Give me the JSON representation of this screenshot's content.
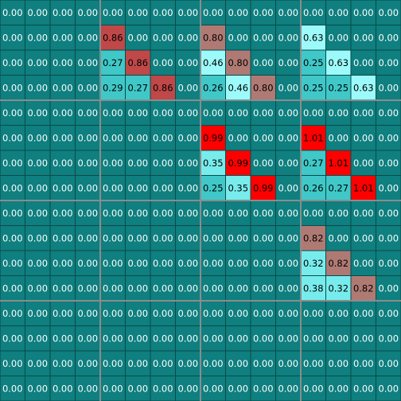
{
  "chart_data": {
    "type": "heatmap",
    "rows": 16,
    "cols": 16,
    "block_size": 4,
    "grid": true,
    "colors": {
      "background": "#0f7f7f",
      "cell_zero": "#0f7f7f",
      "cell_border": "#0a4a4a",
      "block_separator": "#8c8c8c",
      "low_cyan": "#40c8c8",
      "mid_cyan": "#78ecec",
      "high_cyan": "#9cfafa",
      "mid_red": "#b07a74",
      "high_red": "#c04848",
      "max_red": "#ff0000",
      "text_light": "#ffffff",
      "text_dark": "#000000"
    },
    "values": [
      [
        0.0,
        0.0,
        0.0,
        0.0,
        0.0,
        0.0,
        0.0,
        0.0,
        0.0,
        0.0,
        0.0,
        0.0,
        0.0,
        0.0,
        0.0,
        0.0
      ],
      [
        0.0,
        0.0,
        0.0,
        0.0,
        0.86,
        0.0,
        0.0,
        0.0,
        0.8,
        0.0,
        0.0,
        0.0,
        0.63,
        0.0,
        0.0,
        0.0
      ],
      [
        0.0,
        0.0,
        0.0,
        0.0,
        0.27,
        0.86,
        0.0,
        0.0,
        0.46,
        0.8,
        0.0,
        0.0,
        0.25,
        0.63,
        0.0,
        0.0
      ],
      [
        0.0,
        0.0,
        0.0,
        0.0,
        0.29,
        0.27,
        0.86,
        0.0,
        0.26,
        0.46,
        0.8,
        0.0,
        0.25,
        0.25,
        0.63,
        0.0
      ],
      [
        0.0,
        0.0,
        0.0,
        0.0,
        0.0,
        0.0,
        0.0,
        0.0,
        0.0,
        0.0,
        0.0,
        0.0,
        0.0,
        0.0,
        0.0,
        0.0
      ],
      [
        0.0,
        0.0,
        0.0,
        0.0,
        0.0,
        0.0,
        0.0,
        0.0,
        0.99,
        0.0,
        0.0,
        0.0,
        1.01,
        0.0,
        0.0,
        0.0
      ],
      [
        0.0,
        0.0,
        0.0,
        0.0,
        0.0,
        0.0,
        0.0,
        0.0,
        0.35,
        0.99,
        0.0,
        0.0,
        0.27,
        1.01,
        0.0,
        0.0
      ],
      [
        0.0,
        0.0,
        0.0,
        0.0,
        0.0,
        0.0,
        0.0,
        0.0,
        0.25,
        0.35,
        0.99,
        0.0,
        0.26,
        0.27,
        1.01,
        0.0
      ],
      [
        0.0,
        0.0,
        0.0,
        0.0,
        0.0,
        0.0,
        0.0,
        0.0,
        0.0,
        0.0,
        0.0,
        0.0,
        0.0,
        0.0,
        0.0,
        0.0
      ],
      [
        0.0,
        0.0,
        0.0,
        0.0,
        0.0,
        0.0,
        0.0,
        0.0,
        0.0,
        0.0,
        0.0,
        0.0,
        0.82,
        0.0,
        0.0,
        0.0
      ],
      [
        0.0,
        0.0,
        0.0,
        0.0,
        0.0,
        0.0,
        0.0,
        0.0,
        0.0,
        0.0,
        0.0,
        0.0,
        0.32,
        0.82,
        0.0,
        0.0
      ],
      [
        0.0,
        0.0,
        0.0,
        0.0,
        0.0,
        0.0,
        0.0,
        0.0,
        0.0,
        0.0,
        0.0,
        0.0,
        0.38,
        0.32,
        0.82,
        0.0
      ],
      [
        0.0,
        0.0,
        0.0,
        0.0,
        0.0,
        0.0,
        0.0,
        0.0,
        0.0,
        0.0,
        0.0,
        0.0,
        0.0,
        0.0,
        0.0,
        0.0
      ],
      [
        0.0,
        0.0,
        0.0,
        0.0,
        0.0,
        0.0,
        0.0,
        0.0,
        0.0,
        0.0,
        0.0,
        0.0,
        0.0,
        0.0,
        0.0,
        0.0
      ],
      [
        0.0,
        0.0,
        0.0,
        0.0,
        0.0,
        0.0,
        0.0,
        0.0,
        0.0,
        0.0,
        0.0,
        0.0,
        0.0,
        0.0,
        0.0,
        0.0
      ],
      [
        0.0,
        0.0,
        0.0,
        0.0,
        0.0,
        0.0,
        0.0,
        0.0,
        0.0,
        0.0,
        0.0,
        0.0,
        0.0,
        0.0,
        0.0,
        0.0
      ]
    ]
  }
}
